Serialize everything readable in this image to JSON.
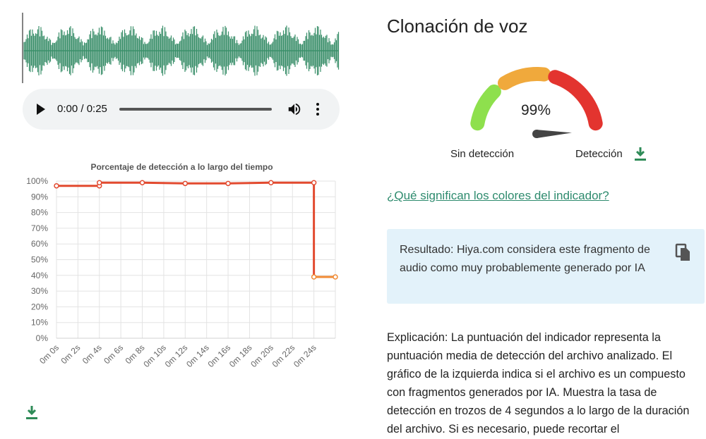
{
  "player": {
    "time": "0:00 / 0:25",
    "play_icon": "play-icon",
    "volume_icon": "volume-icon",
    "more_icon": "more-vert-icon"
  },
  "waveform": {
    "color": "#3a8f6a"
  },
  "chart_data": {
    "type": "line",
    "title": "Porcentaje de detección a lo largo del tiempo",
    "xlabel": "",
    "ylabel": "",
    "x": [
      "0m 0s",
      "0m 2s",
      "0m 4s",
      "0m 6s",
      "0m 8s",
      "0m 10s",
      "0m 12s",
      "0m 14s",
      "0m 16s",
      "0m 18s",
      "0m 20s",
      "0m 22s",
      "0m 24s"
    ],
    "y_ticks": [
      "0%",
      "10%",
      "20%",
      "30%",
      "40%",
      "50%",
      "60%",
      "70%",
      "80%",
      "90%",
      "100%"
    ],
    "ylim": [
      0,
      100
    ],
    "grid": true,
    "series": [
      {
        "color": "#e24a2f",
        "points": [
          [
            0,
            97
          ],
          [
            4,
            97
          ],
          [
            4,
            99
          ],
          [
            8,
            99
          ],
          [
            12,
            98.5
          ],
          [
            16,
            98.5
          ],
          [
            20,
            99
          ],
          [
            24,
            99
          ]
        ]
      },
      {
        "color": "#f08a34",
        "points": [
          [
            24,
            39
          ],
          [
            26,
            39
          ]
        ]
      }
    ]
  },
  "gauge": {
    "title": "Clonación de voz",
    "value_text": "99%",
    "value": 99,
    "label_low": "Sin detección",
    "label_high": "Detección",
    "colors": [
      "#8ee04d",
      "#f0a93c",
      "#e3342f"
    ],
    "download_icon": "download-icon"
  },
  "link_text": "¿Qué significan los colores del indicador?",
  "result_text": "Resultado: Hiya.com considera este fragmento de audio como muy probablemente generado por IA",
  "explanation_text": "Explicación: La puntuación del indicador representa la puntuación media de detección del archivo analizado. El gráfico de la izquierda indica si el archivo es un compuesto con fragmentos generados por IA. Muestra la tasa de detección en trozos de 4 segundos a lo largo de la duración del archivo. Si es necesario, puede recortar el"
}
